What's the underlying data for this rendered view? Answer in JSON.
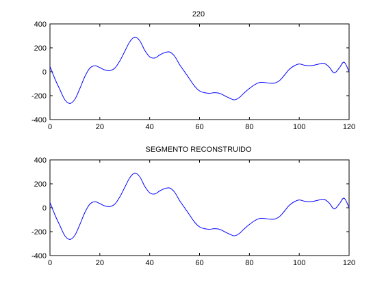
{
  "chart_data": [
    {
      "type": "line",
      "title": "220",
      "xlim": [
        0,
        120
      ],
      "ylim": [
        -400,
        400
      ],
      "xticks": [
        0,
        20,
        40,
        60,
        80,
        100,
        120
      ],
      "yticks": [
        -400,
        -200,
        0,
        200,
        400
      ],
      "grid": false,
      "line_color": "#0000ff",
      "series": [
        {
          "x": [
            0,
            2,
            4,
            6,
            8,
            10,
            12,
            14,
            16,
            18,
            20,
            22,
            24,
            26,
            28,
            30,
            32,
            34,
            36,
            38,
            40,
            42,
            44,
            46,
            48,
            50,
            52,
            54,
            56,
            58,
            60,
            62,
            64,
            66,
            68,
            70,
            72,
            74,
            76,
            78,
            80,
            82,
            84,
            86,
            88,
            90,
            92,
            94,
            96,
            98,
            100,
            102,
            104,
            106,
            108,
            110,
            112,
            114,
            116,
            118,
            120
          ],
          "y": [
            45,
            -60,
            -150,
            -235,
            -265,
            -230,
            -140,
            -40,
            30,
            50,
            35,
            15,
            10,
            30,
            90,
            170,
            250,
            290,
            260,
            180,
            125,
            115,
            140,
            160,
            165,
            130,
            60,
            0,
            -60,
            -120,
            -160,
            -175,
            -180,
            -175,
            -180,
            -200,
            -220,
            -235,
            -215,
            -175,
            -140,
            -110,
            -90,
            -90,
            -95,
            -95,
            -75,
            -30,
            20,
            50,
            65,
            55,
            50,
            55,
            65,
            70,
            40,
            -10,
            30,
            80,
            0
          ]
        }
      ]
    },
    {
      "type": "line",
      "title": "SEGMENTO RECONSTRUIDO",
      "xlim": [
        0,
        120
      ],
      "ylim": [
        -400,
        400
      ],
      "xticks": [
        0,
        20,
        40,
        60,
        80,
        100,
        120
      ],
      "yticks": [
        -400,
        -200,
        0,
        200,
        400
      ],
      "grid": false,
      "line_color": "#0000ff",
      "series": [
        {
          "x": [
            0,
            2,
            4,
            6,
            8,
            10,
            12,
            14,
            16,
            18,
            20,
            22,
            24,
            26,
            28,
            30,
            32,
            34,
            36,
            38,
            40,
            42,
            44,
            46,
            48,
            50,
            52,
            54,
            56,
            58,
            60,
            62,
            64,
            66,
            68,
            70,
            72,
            74,
            76,
            78,
            80,
            82,
            84,
            86,
            88,
            90,
            92,
            94,
            96,
            98,
            100,
            102,
            104,
            106,
            108,
            110,
            112,
            114,
            116,
            118,
            120
          ],
          "y": [
            45,
            -60,
            -150,
            -235,
            -265,
            -230,
            -140,
            -40,
            30,
            50,
            35,
            15,
            10,
            30,
            90,
            170,
            250,
            290,
            260,
            180,
            125,
            115,
            140,
            160,
            165,
            130,
            60,
            0,
            -60,
            -120,
            -160,
            -175,
            -180,
            -175,
            -180,
            -200,
            -220,
            -235,
            -215,
            -175,
            -140,
            -110,
            -90,
            -90,
            -95,
            -95,
            -75,
            -30,
            20,
            50,
            65,
            55,
            50,
            55,
            65,
            70,
            40,
            -10,
            30,
            80,
            0
          ]
        }
      ]
    }
  ]
}
